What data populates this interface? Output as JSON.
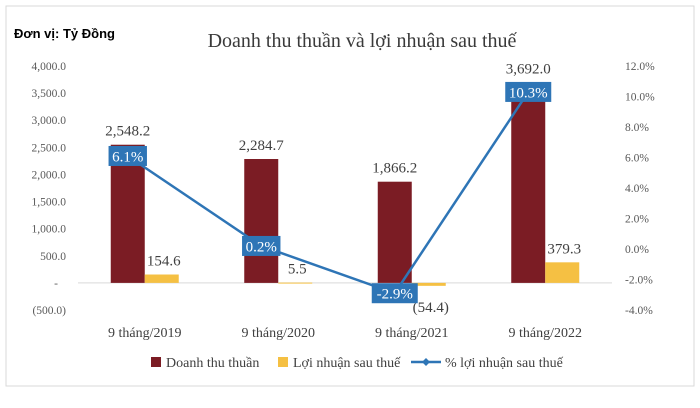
{
  "unit_label": "Đơn vị: Tỷ Đồng",
  "chart_data": {
    "type": "bar",
    "title": "Doanh thu thuần và lợi nhuận sau thuế",
    "categories": [
      "9 tháng/2019",
      "9 tháng/2020",
      "9 tháng/2021",
      "9 tháng/2022"
    ],
    "series": [
      {
        "name": "Doanh thu thuần",
        "type": "bar",
        "axis": "left",
        "color": "#7b1c24",
        "values": [
          2548.2,
          2284.7,
          1866.2,
          3692.0
        ],
        "labels": [
          "2,548.2",
          "2,284.7",
          "1,866.2",
          "3,692.0"
        ]
      },
      {
        "name": "Lợi nhuận sau thuế",
        "type": "bar",
        "axis": "left",
        "color": "#f5c043",
        "values": [
          154.6,
          5.5,
          -54.4,
          379.3
        ],
        "labels": [
          "154.6",
          "5.5",
          "(54.4)",
          "379.3"
        ]
      },
      {
        "name": "% lợi nhuận sau thuế",
        "type": "line",
        "axis": "right",
        "color": "#2e75b6",
        "values": [
          6.1,
          0.2,
          -2.9,
          10.3
        ],
        "labels": [
          "6.1%",
          "0.2%",
          "-2.9%",
          "10.3%"
        ]
      }
    ],
    "y_left": {
      "min": -500,
      "max": 4000,
      "ticks": [
        4000,
        3500,
        3000,
        2500,
        2000,
        1500,
        1000,
        500,
        0,
        -500
      ],
      "tick_labels": [
        "4,000.0",
        "3,500.0",
        "3,000.0",
        "2,500.0",
        "2,000.0",
        "1,500.0",
        "1,000.0",
        "500.0",
        "-",
        "(500.0)"
      ]
    },
    "y_right": {
      "min": -4,
      "max": 12,
      "ticks": [
        12,
        10,
        8,
        6,
        4,
        2,
        0,
        -2,
        -4
      ],
      "tick_labels": [
        "12.0%",
        "10.0%",
        "8.0%",
        "6.0%",
        "4.0%",
        "2.0%",
        "0.0%",
        "-2.0%",
        "-4.0%"
      ]
    },
    "grid": false,
    "legend": "bottom"
  }
}
